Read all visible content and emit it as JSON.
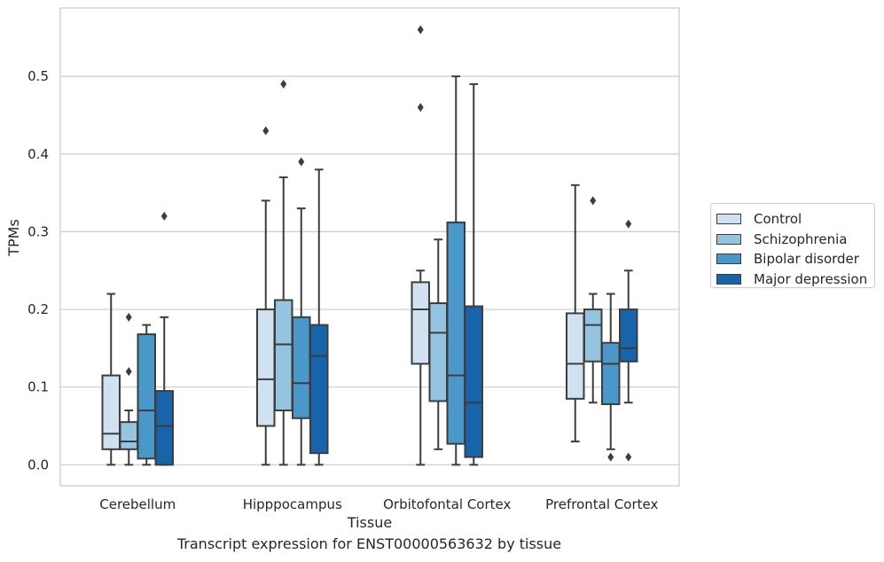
{
  "chart_data": {
    "type": "box",
    "title": "",
    "xlabel": "Tissue",
    "ylabel": "TPMs",
    "caption": "Transcript expression for ENST00000563632 by tissue",
    "ylim": [
      -0.027,
      0.588
    ],
    "yticks": [
      "0.0",
      "0.1",
      "0.2",
      "0.3",
      "0.4",
      "0.5"
    ],
    "grid": true,
    "legend_position": "right",
    "categories": [
      "Cerebellum",
      "Hipppocampus",
      "Orbitofontal Cortex",
      "Prefrontal Cortex"
    ],
    "series": [
      {
        "name": "Control",
        "color": "#d0e1f2",
        "boxes": [
          {
            "whislo": 0.0,
            "q1": 0.02,
            "med": 0.04,
            "q3": 0.115,
            "whishi": 0.22,
            "fliers": []
          },
          {
            "whislo": 0.0,
            "q1": 0.05,
            "med": 0.11,
            "q3": 0.2,
            "whishi": 0.34,
            "fliers": [
              0.43
            ]
          },
          {
            "whislo": 0.0,
            "q1": 0.13,
            "med": 0.2,
            "q3": 0.235,
            "whishi": 0.25,
            "fliers": [
              0.46,
              0.56
            ]
          },
          {
            "whislo": 0.03,
            "q1": 0.085,
            "med": 0.13,
            "q3": 0.195,
            "whishi": 0.36,
            "fliers": []
          }
        ]
      },
      {
        "name": "Schizophrenia",
        "color": "#94c4df",
        "boxes": [
          {
            "whislo": 0.0,
            "q1": 0.02,
            "med": 0.03,
            "q3": 0.055,
            "whishi": 0.07,
            "fliers": [
              0.12,
              0.19
            ]
          },
          {
            "whislo": 0.0,
            "q1": 0.07,
            "med": 0.155,
            "q3": 0.212,
            "whishi": 0.37,
            "fliers": [
              0.49
            ]
          },
          {
            "whislo": 0.02,
            "q1": 0.082,
            "med": 0.17,
            "q3": 0.208,
            "whishi": 0.29,
            "fliers": []
          },
          {
            "whislo": 0.08,
            "q1": 0.133,
            "med": 0.18,
            "q3": 0.2,
            "whishi": 0.22,
            "fliers": [
              0.34
            ]
          }
        ]
      },
      {
        "name": "Bipolar disorder",
        "color": "#4a98c9",
        "boxes": [
          {
            "whislo": 0.0,
            "q1": 0.008,
            "med": 0.07,
            "q3": 0.168,
            "whishi": 0.18,
            "fliers": []
          },
          {
            "whislo": 0.0,
            "q1": 0.06,
            "med": 0.105,
            "q3": 0.19,
            "whishi": 0.33,
            "fliers": [
              0.39
            ]
          },
          {
            "whislo": 0.0,
            "q1": 0.027,
            "med": 0.115,
            "q3": 0.312,
            "whishi": 0.5,
            "fliers": []
          },
          {
            "whislo": 0.02,
            "q1": 0.078,
            "med": 0.13,
            "q3": 0.157,
            "whishi": 0.22,
            "fliers": [
              0.01
            ]
          }
        ]
      },
      {
        "name": "Major depression",
        "color": "#1764ab",
        "boxes": [
          {
            "whislo": 0.0,
            "q1": 0.0,
            "med": 0.05,
            "q3": 0.095,
            "whishi": 0.19,
            "fliers": [
              0.32
            ]
          },
          {
            "whislo": 0.0,
            "q1": 0.015,
            "med": 0.14,
            "q3": 0.18,
            "whishi": 0.38,
            "fliers": []
          },
          {
            "whislo": 0.0,
            "q1": 0.01,
            "med": 0.08,
            "q3": 0.204,
            "whishi": 0.49,
            "fliers": []
          },
          {
            "whislo": 0.08,
            "q1": 0.133,
            "med": 0.15,
            "q3": 0.2,
            "whishi": 0.25,
            "fliers": [
              0.01,
              0.31
            ]
          }
        ]
      }
    ]
  }
}
